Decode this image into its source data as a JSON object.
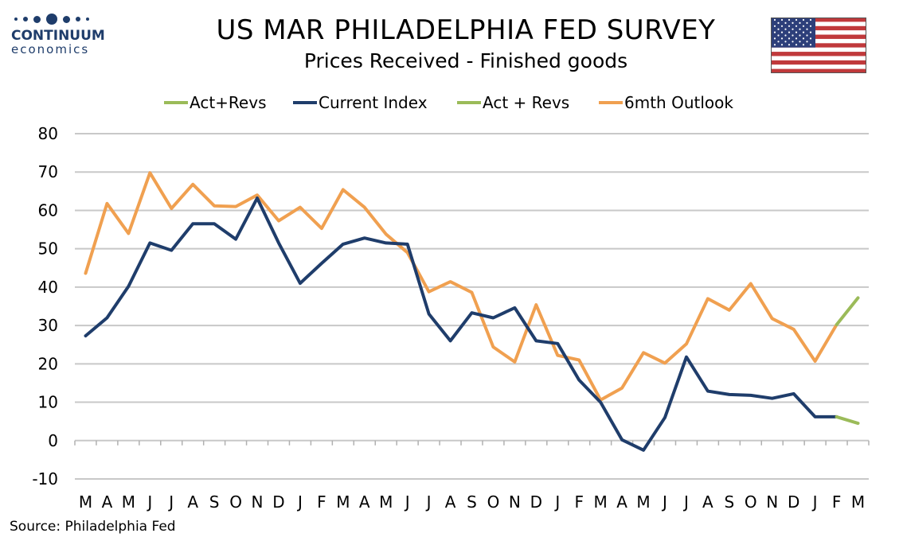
{
  "logo": {
    "name": "CONTINUUM",
    "sub": "economics"
  },
  "title": "US MAR PHILADELPHIA FED SURVEY",
  "subtitle": "Prices Received - Finished goods",
  "source": "Source: Philadelphia Fed",
  "colors": {
    "current": "#1f3d6b",
    "outlook": "#f0a050",
    "revs": "#9bbb59",
    "grid": "#c8c8c8"
  },
  "chart_data": {
    "type": "line",
    "categories": [
      "M",
      "A",
      "M",
      "J",
      "J",
      "A",
      "S",
      "O",
      "N",
      "D",
      "J",
      "F",
      "M",
      "A",
      "M",
      "J",
      "J",
      "A",
      "S",
      "O",
      "N",
      "D",
      "J",
      "F",
      "M",
      "A",
      "M",
      "J",
      "J",
      "A",
      "S",
      "O",
      "N",
      "D",
      "J",
      "F",
      "M"
    ],
    "ylim": [
      -10,
      80
    ],
    "yticks": [
      -10,
      0,
      10,
      20,
      30,
      40,
      50,
      60,
      70,
      80
    ],
    "grid": true,
    "legend_position": "top",
    "legend": [
      "Act+Revs",
      "Current Index",
      "Act + Revs",
      "6mth Outlook"
    ],
    "series": [
      {
        "name": "Current Index",
        "color": "#1f3d6b",
        "values": [
          27.3,
          32,
          40.2,
          51.5,
          49.6,
          56.5,
          56.5,
          52.5,
          63.2,
          51.5,
          41,
          46.2,
          51.2,
          52.8,
          51.5,
          51.2,
          33,
          26,
          33.3,
          32,
          34.6,
          26,
          25.3,
          15.8,
          10,
          0.2,
          -2.5,
          6,
          21.8,
          12.9,
          12,
          11.8,
          11,
          12.2,
          6.2,
          6.2,
          null
        ]
      },
      {
        "name": "Act+Revs",
        "color": "#9bbb59",
        "values": [
          null,
          null,
          null,
          null,
          null,
          null,
          null,
          null,
          null,
          null,
          null,
          null,
          null,
          null,
          null,
          null,
          null,
          null,
          null,
          null,
          null,
          null,
          null,
          null,
          null,
          null,
          null,
          null,
          null,
          null,
          null,
          null,
          null,
          null,
          null,
          6.2,
          4.5
        ]
      },
      {
        "name": "6mth Outlook",
        "color": "#f0a050",
        "values": [
          43.6,
          61.8,
          54,
          69.8,
          60.5,
          66.8,
          61.2,
          61,
          64,
          57.3,
          60.8,
          55.3,
          65.4,
          60.8,
          53.8,
          49,
          38.8,
          41.4,
          38.6,
          24.4,
          20.5,
          35.4,
          22.2,
          21,
          10.6,
          13.7,
          22.9,
          20.2,
          25.2,
          37,
          34,
          40.9,
          31.8,
          29,
          20.7,
          30.2,
          null
        ]
      },
      {
        "name": "Act + Revs",
        "color": "#9bbb59",
        "values": [
          null,
          null,
          null,
          null,
          null,
          null,
          null,
          null,
          null,
          null,
          null,
          null,
          null,
          null,
          null,
          null,
          null,
          null,
          null,
          null,
          null,
          null,
          null,
          null,
          null,
          null,
          null,
          null,
          null,
          null,
          null,
          null,
          null,
          null,
          null,
          30.2,
          37.2
        ]
      }
    ]
  }
}
